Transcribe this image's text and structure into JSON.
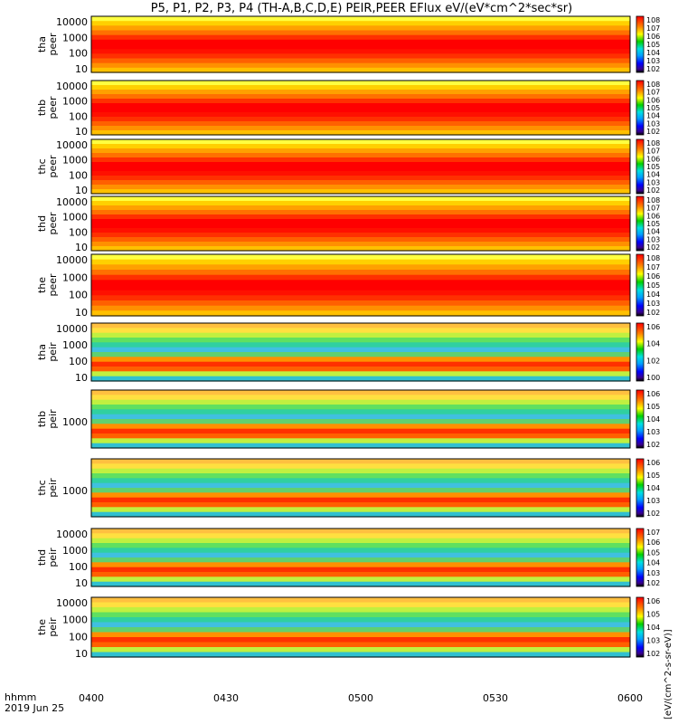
{
  "title": "P5, P1, P2, P3, P4 (TH-A,B,C,D,E) PEIR,PEER EFlux eV/(eV*cm^2*sec*sr)",
  "time_axis": {
    "ticks": [
      "0400",
      "0430",
      "0500",
      "0530",
      "0600"
    ],
    "label_line1": "hhmm",
    "label_line2": "2019 Jun 25"
  },
  "colorbar_unit": "[eV/(cm^2-s-sr-eV)]",
  "chart_data": {
    "type": "heatmap",
    "x_range": [
      "04:00",
      "06:00"
    ],
    "panels": [
      {
        "probe": "tha",
        "species": "peer",
        "y_ticks": [
          "10000",
          "1000",
          "100",
          "10"
        ],
        "color_ticks": [
          "10^8",
          "10^7",
          "10^6",
          "10^5",
          "10^4",
          "10^3",
          "10^2"
        ]
      },
      {
        "probe": "thb",
        "species": "peer",
        "y_ticks": [
          "10000",
          "1000",
          "100",
          "10"
        ],
        "color_ticks": [
          "10^8",
          "10^7",
          "10^6",
          "10^5",
          "10^4",
          "10^3",
          "10^2"
        ]
      },
      {
        "probe": "thc",
        "species": "peer",
        "y_ticks": [
          "10000",
          "1000",
          "100",
          "10"
        ],
        "color_ticks": [
          "10^8",
          "10^7",
          "10^6",
          "10^5",
          "10^4",
          "10^3",
          "10^2"
        ]
      },
      {
        "probe": "thd",
        "species": "peer",
        "y_ticks": [
          "10000",
          "1000",
          "100",
          "10"
        ],
        "color_ticks": [
          "10^8",
          "10^7",
          "10^6",
          "10^5",
          "10^4",
          "10^3",
          "10^2"
        ]
      },
      {
        "probe": "the",
        "species": "peer",
        "y_ticks": [
          "10000",
          "1000",
          "100",
          "10"
        ],
        "color_ticks": [
          "10^8",
          "10^7",
          "10^6",
          "10^5",
          "10^4",
          "10^3",
          "10^2"
        ]
      },
      {
        "probe": "tha",
        "species": "peir",
        "y_ticks": [
          "10000",
          "1000",
          "100",
          "10"
        ],
        "color_ticks": [
          "10^6",
          "10^4",
          "10^2",
          "10^0"
        ]
      },
      {
        "probe": "thb",
        "species": "peir",
        "y_ticks": [
          "1000"
        ],
        "color_ticks": [
          "10^6",
          "10^5",
          "10^4",
          "10^3",
          "10^2"
        ]
      },
      {
        "probe": "thc",
        "species": "peir",
        "y_ticks": [
          "1000"
        ],
        "color_ticks": [
          "10^6",
          "10^5",
          "10^4",
          "10^3",
          "10^2"
        ]
      },
      {
        "probe": "thd",
        "species": "peir",
        "y_ticks": [
          "10000",
          "1000",
          "100",
          "10"
        ],
        "color_ticks": [
          "10^7",
          "10^6",
          "10^5",
          "10^4",
          "10^3",
          "10^2"
        ]
      },
      {
        "probe": "the",
        "species": "peir",
        "y_ticks": [
          "10000",
          "1000",
          "100",
          "10"
        ],
        "color_ticks": [
          "10^6",
          "10^5",
          "10^4",
          "10^3",
          "10^2"
        ]
      }
    ]
  }
}
